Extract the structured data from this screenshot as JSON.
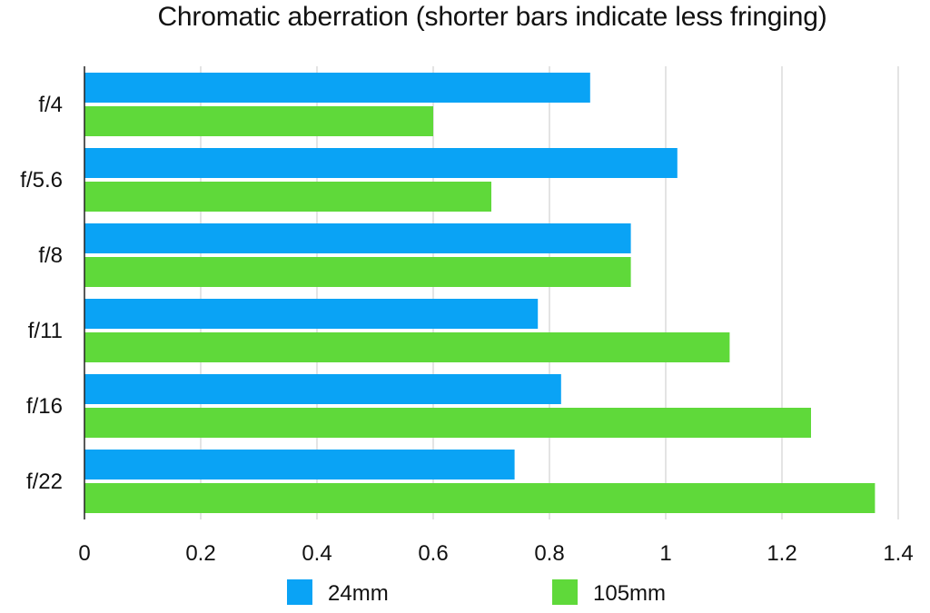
{
  "chart_data": {
    "type": "bar",
    "orientation": "horizontal",
    "title": "Chromatic aberration (shorter bars indicate less fringing)",
    "categories": [
      "f/4",
      "f/5.6",
      "f/8",
      "f/11",
      "f/16",
      "f/22"
    ],
    "series": [
      {
        "name": "24mm",
        "color": "#0AA3F5",
        "values": [
          0.87,
          1.02,
          0.94,
          0.78,
          0.82,
          0.74
        ]
      },
      {
        "name": "105mm",
        "color": "#5FD93A",
        "values": [
          0.6,
          0.7,
          0.94,
          1.11,
          1.25,
          1.36
        ]
      }
    ],
    "xlabel": "",
    "ylabel": "",
    "xlim": [
      0,
      1.4
    ],
    "xticks": [
      "0",
      "0.2",
      "0.4",
      "0.6",
      "0.8",
      "1",
      "1.2",
      "1.4"
    ],
    "grid": true,
    "legend_position": "bottom"
  }
}
